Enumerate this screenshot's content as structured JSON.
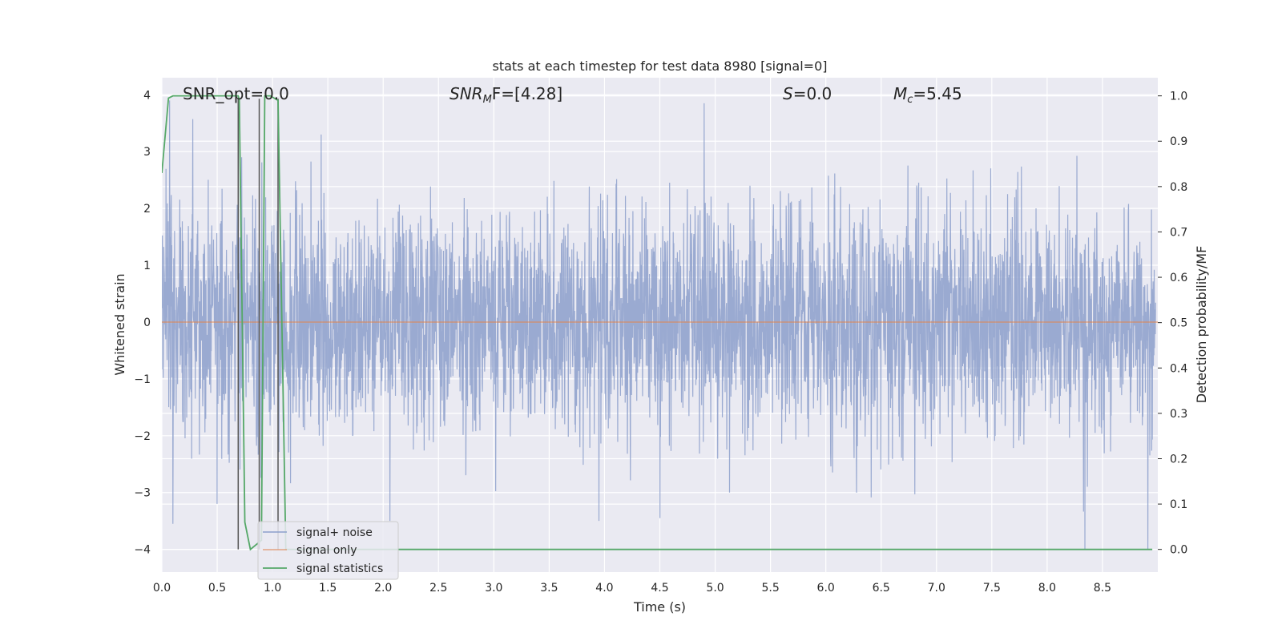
{
  "chart_data": {
    "type": "line",
    "title": "stats at each timestep for test data 8980 [signal=0]",
    "xlabel": "Time (s)",
    "ylabel": "Whitened strain",
    "ylabel_right": "Detection probability/MF",
    "xlim": [
      0.0,
      9.0
    ],
    "ylim": [
      -4.4,
      4.3
    ],
    "ylim_right": [
      -0.05,
      1.04
    ],
    "x_ticks": [
      0.0,
      0.5,
      1.0,
      1.5,
      2.0,
      2.5,
      3.0,
      3.5,
      4.0,
      4.5,
      5.0,
      5.5,
      6.0,
      6.5,
      7.0,
      7.5,
      8.0,
      8.5
    ],
    "x_tick_labels": [
      "0.0",
      "0.5",
      "1.0",
      "1.5",
      "2.0",
      "2.5",
      "3.0",
      "3.5",
      "4.0",
      "4.5",
      "5.0",
      "5.5",
      "6.0",
      "6.5",
      "7.0",
      "7.5",
      "8.0",
      "8.5"
    ],
    "y_ticks": [
      -4,
      -3,
      -2,
      -1,
      0,
      1,
      2,
      3,
      4
    ],
    "y_tick_labels": [
      "−4",
      "−3",
      "−2",
      "−1",
      "0",
      "1",
      "2",
      "3",
      "4"
    ],
    "y_right_ticks": [
      0.0,
      0.1,
      0.2,
      0.3,
      0.4,
      0.5,
      0.6,
      0.7,
      0.8,
      0.9,
      1.0
    ],
    "y_right_tick_labels": [
      "0.0",
      "0.1",
      "0.2",
      "0.3",
      "0.4",
      "0.5",
      "0.6",
      "0.7",
      "0.8",
      "0.9",
      "1.0"
    ],
    "grid": true,
    "legend_position": "bottom-left",
    "annotations": {
      "snr_opt": "SNR_opt=0.0",
      "snr_mf_main": "SNR",
      "snr_mf_sub": "M",
      "snr_mf_rest": "F=[4.28]",
      "s_main": "S",
      "s_rest": "=0.0",
      "mc_main": "M",
      "mc_sub": "c",
      "mc_rest": "=5.45"
    },
    "series": [
      {
        "name": "signal+ noise",
        "color": "#8c9fcb",
        "axis": "left",
        "note": "whitened noise, approx. Gaussian, peaks about +3.9 / -4.0",
        "peaks": [
          [
            0.07,
            3.9
          ],
          [
            0.1,
            -3.55
          ],
          [
            0.5,
            -3.2
          ],
          [
            0.72,
            2.9
          ],
          [
            1.44,
            3.3
          ],
          [
            2.06,
            -3.5
          ],
          [
            4.9,
            3.85
          ],
          [
            3.95,
            -3.5
          ],
          [
            4.5,
            -3.45
          ],
          [
            5.13,
            -3.0
          ],
          [
            8.34,
            -4.0
          ],
          [
            8.91,
            -4.0
          ]
        ]
      },
      {
        "name": "signal only",
        "color": "#dd8452",
        "axis": "left",
        "x": [
          0.0,
          9.0
        ],
        "y": [
          0.0,
          0.0
        ]
      },
      {
        "name": "signal statistics",
        "color": "#55a868",
        "axis": "right",
        "x": [
          0.0,
          0.06,
          0.1,
          0.69,
          0.7,
          0.75,
          0.8,
          0.9,
          0.93,
          0.98,
          1.05,
          1.12,
          1.2,
          8.95
        ],
        "y": [
          0.83,
          0.995,
          1.0,
          1.0,
          0.99,
          0.06,
          0.0,
          0.02,
          1.0,
          1.0,
          0.99,
          0.0,
          0.0,
          0.0
        ]
      }
    ],
    "vertical_lines": [
      0.69,
      0.88,
      1.05
    ]
  }
}
